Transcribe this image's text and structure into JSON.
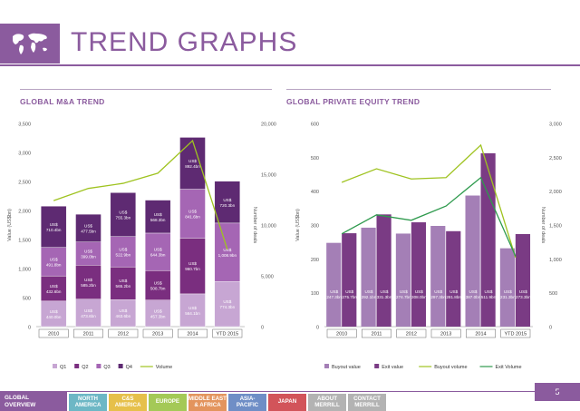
{
  "header": {
    "title": "TREND GRAPHS",
    "logo_icon": "world-map-icon"
  },
  "page_number": "5",
  "colors": {
    "accent": "#8b5b9e",
    "q1": "#c7a6d3",
    "q2": "#7a2e7f",
    "q3": "#a566b4",
    "q4": "#5e2a72",
    "volume": "#9fc320",
    "buyout_value": "#a47fb6",
    "exit_value": "#7a3b84",
    "buyout_volume": "#9fc320",
    "exit_volume": "#2e9a4d"
  },
  "chart_data": [
    {
      "type": "bar",
      "title": "GLOBAL M&A TREND",
      "stacked": true,
      "categories": [
        "2010",
        "2011",
        "2012",
        "2013",
        "2014",
        "YTD 2015"
      ],
      "ylabel": "Value (US$bn)",
      "y2label": "Number of deals",
      "ylim": [
        0,
        3500
      ],
      "y2lim": [
        0,
        20000
      ],
      "yticks": [
        "0",
        "500",
        "1,000",
        "1,500",
        "2,000",
        "2,500",
        "3,000",
        "3,500"
      ],
      "y2ticks": [
        "0",
        "5,000",
        "10,000",
        "15,000",
        "20,000"
      ],
      "series": [
        {
          "name": "Q1",
          "values": [
            440.0,
            473.6,
            463.6,
            457.3,
            564.1,
            774.3
          ],
          "labels": [
            "US$ 440.0bn",
            "US$ 473.6bn",
            "US$ 463.6bn",
            "US$ 457.3bn",
            "US$ 564.1bn",
            "US$ 774.3bn"
          ]
        },
        {
          "name": "Q2",
          "values": [
            432.6,
            585.2,
            565.2,
            508.7,
            960.7,
            0
          ],
          "labels": [
            "US$ 432.6bn",
            "US$ 585.2bn",
            "US$ 565.2bn",
            "US$ 508.7bn",
            "US$ 960.7bn",
            ""
          ]
        },
        {
          "name": "Q3",
          "values": [
            491.8,
            399.0,
            522.9,
            644.3,
            841.6,
            1008.9
          ],
          "labels": [
            "US$ 491.8bn",
            "US$ 399.0bn",
            "US$ 522.9bn",
            "US$ 644.3bn",
            "US$ 841.6bn",
            "US$ 1,008.9bn"
          ]
        },
        {
          "name": "Q4",
          "values": [
            710.4,
            477.5,
            755.3,
            568.3,
            892.4,
            720.3
          ],
          "labels": [
            "US$ 710.4bn",
            "US$ 477.5bn",
            "US$ 755.3bn",
            "US$ 568.3bn",
            "US$ 892.4bn",
            "US$ 720.3bn"
          ]
        }
      ],
      "line": {
        "name": "Volume",
        "values": [
          12400,
          13600,
          14100,
          15100,
          18300,
          7600
        ]
      },
      "legend": [
        "Q1",
        "Q2",
        "Q3",
        "Q4",
        "Volume"
      ]
    },
    {
      "type": "bar",
      "title": "GLOBAL PRIVATE EQUITY TREND",
      "stacked": false,
      "categories": [
        "2010",
        "2011",
        "2012",
        "2013",
        "2014",
        "YTD 2015"
      ],
      "ylabel": "Value (US$bn)",
      "y2label": "Number of deals",
      "ylim": [
        0,
        600
      ],
      "y2lim": [
        0,
        3000
      ],
      "yticks": [
        "0",
        "100",
        "200",
        "300",
        "400",
        "500",
        "600"
      ],
      "y2ticks": [
        "0",
        "500",
        "1,000",
        "1,500",
        "2,000",
        "2,500",
        "3,000"
      ],
      "series": [
        {
          "name": "Buyout value",
          "values": [
            247.3,
            292.1,
            274.7,
            297.3,
            387.0,
            231.3
          ],
          "labels": [
            "US$ 247.3bn",
            "US$ 292.1bn",
            "US$ 274.7bn",
            "US$ 297.3bn",
            "US$ 387.0bn",
            "US$ 231.3bn"
          ]
        },
        {
          "name": "Exit value",
          "values": [
            275.7,
            331.3,
            308.0,
            281.8,
            511.9,
            273.3
          ],
          "labels": [
            "US$ 275.7bn",
            "US$ 331.3bn",
            "US$ 308.0bn",
            "US$ 281.8bn",
            "US$ 511.9bn",
            "US$ 273.3bn"
          ]
        }
      ],
      "lines": [
        {
          "name": "Buyout volume",
          "values": [
            2130,
            2330,
            2180,
            2200,
            2680,
            1020
          ]
        },
        {
          "name": "Exit Volume",
          "values": [
            1370,
            1650,
            1570,
            1780,
            2200,
            1040
          ]
        }
      ],
      "legend": [
        "Buyout value",
        "Exit value",
        "Buyout volume",
        "Exit Volume"
      ]
    }
  ],
  "nav": {
    "active": [
      "GLOBAL",
      "OVERVIEW"
    ],
    "items": [
      {
        "lines": [
          "NORTH",
          "AMERICA"
        ],
        "color": "#6db7c5"
      },
      {
        "lines": [
          "C&S",
          "AMERICA"
        ],
        "color": "#e6c04a"
      },
      {
        "lines": [
          "EUROPE"
        ],
        "color": "#a4c957"
      },
      {
        "lines": [
          "MIDDLE EAST",
          "& AFRICA"
        ],
        "color": "#e3945d"
      },
      {
        "lines": [
          "ASIA-",
          "PACIFIC"
        ],
        "color": "#6f8ec6"
      },
      {
        "lines": [
          "JAPAN"
        ],
        "color": "#d2545a"
      },
      {
        "lines": [
          "ABOUT",
          "MERRILL"
        ],
        "color": "#b3b3b3"
      },
      {
        "lines": [
          "CONTACT",
          "MERRILL"
        ],
        "color": "#b3b3b3"
      }
    ]
  }
}
